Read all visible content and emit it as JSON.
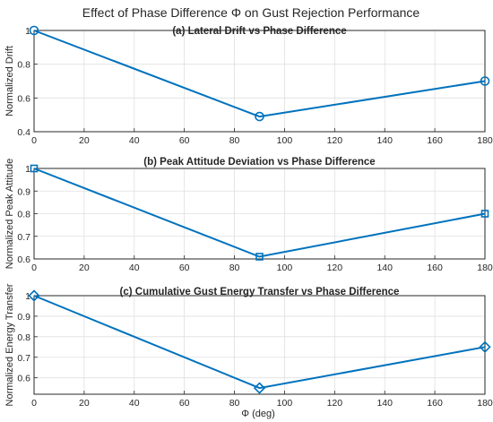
{
  "figure": {
    "title": "Effect of Phase Difference Φ on Gust Rejection Performance",
    "xlabel": "Φ (deg)"
  },
  "chart_data": [
    {
      "type": "line",
      "title": "(a) Lateral Drift vs Phase Difference",
      "xlabel": "",
      "ylabel": "Normalized Drift",
      "xlim": [
        0,
        180
      ],
      "ylim": [
        0.4,
        1.0
      ],
      "xticks": [
        0,
        20,
        40,
        60,
        80,
        100,
        120,
        140,
        160,
        180
      ],
      "yticks": [
        0.4,
        0.6,
        0.8,
        1.0
      ],
      "yticklabels": [
        "0.4",
        "0.6",
        "0.8",
        "1"
      ],
      "grid": true,
      "marker": "circle",
      "color": "#0072BD",
      "x": [
        0,
        90,
        180
      ],
      "y": [
        1.0,
        0.49,
        0.7
      ]
    },
    {
      "type": "line",
      "title": "(b) Peak Attitude Deviation vs Phase Difference",
      "xlabel": "",
      "ylabel": "Normalized Peak Attitude",
      "xlim": [
        0,
        180
      ],
      "ylim": [
        0.6,
        1.0
      ],
      "xticks": [
        0,
        20,
        40,
        60,
        80,
        100,
        120,
        140,
        160,
        180
      ],
      "yticks": [
        0.6,
        0.7,
        0.8,
        0.9,
        1.0
      ],
      "yticklabels": [
        "0.6",
        "0.7",
        "0.8",
        "0.9",
        "1"
      ],
      "grid": true,
      "marker": "square",
      "color": "#0072BD",
      "x": [
        0,
        90,
        180
      ],
      "y": [
        1.0,
        0.61,
        0.8
      ]
    },
    {
      "type": "line",
      "title": "(c) Cumulative Gust Energy Transfer vs Phase Difference",
      "xlabel": "Φ (deg)",
      "ylabel": "Normalized Energy Transfer",
      "xlim": [
        0,
        180
      ],
      "ylim": [
        0.52,
        1.0
      ],
      "xticks": [
        0,
        20,
        40,
        60,
        80,
        100,
        120,
        140,
        160,
        180
      ],
      "yticks": [
        0.6,
        0.7,
        0.8,
        0.9,
        1.0
      ],
      "yticklabels": [
        "0.6",
        "0.7",
        "0.8",
        "0.9",
        "1"
      ],
      "grid": true,
      "marker": "diamond",
      "color": "#0072BD",
      "x": [
        0,
        90,
        180
      ],
      "y": [
        1.0,
        0.55,
        0.75
      ]
    }
  ]
}
